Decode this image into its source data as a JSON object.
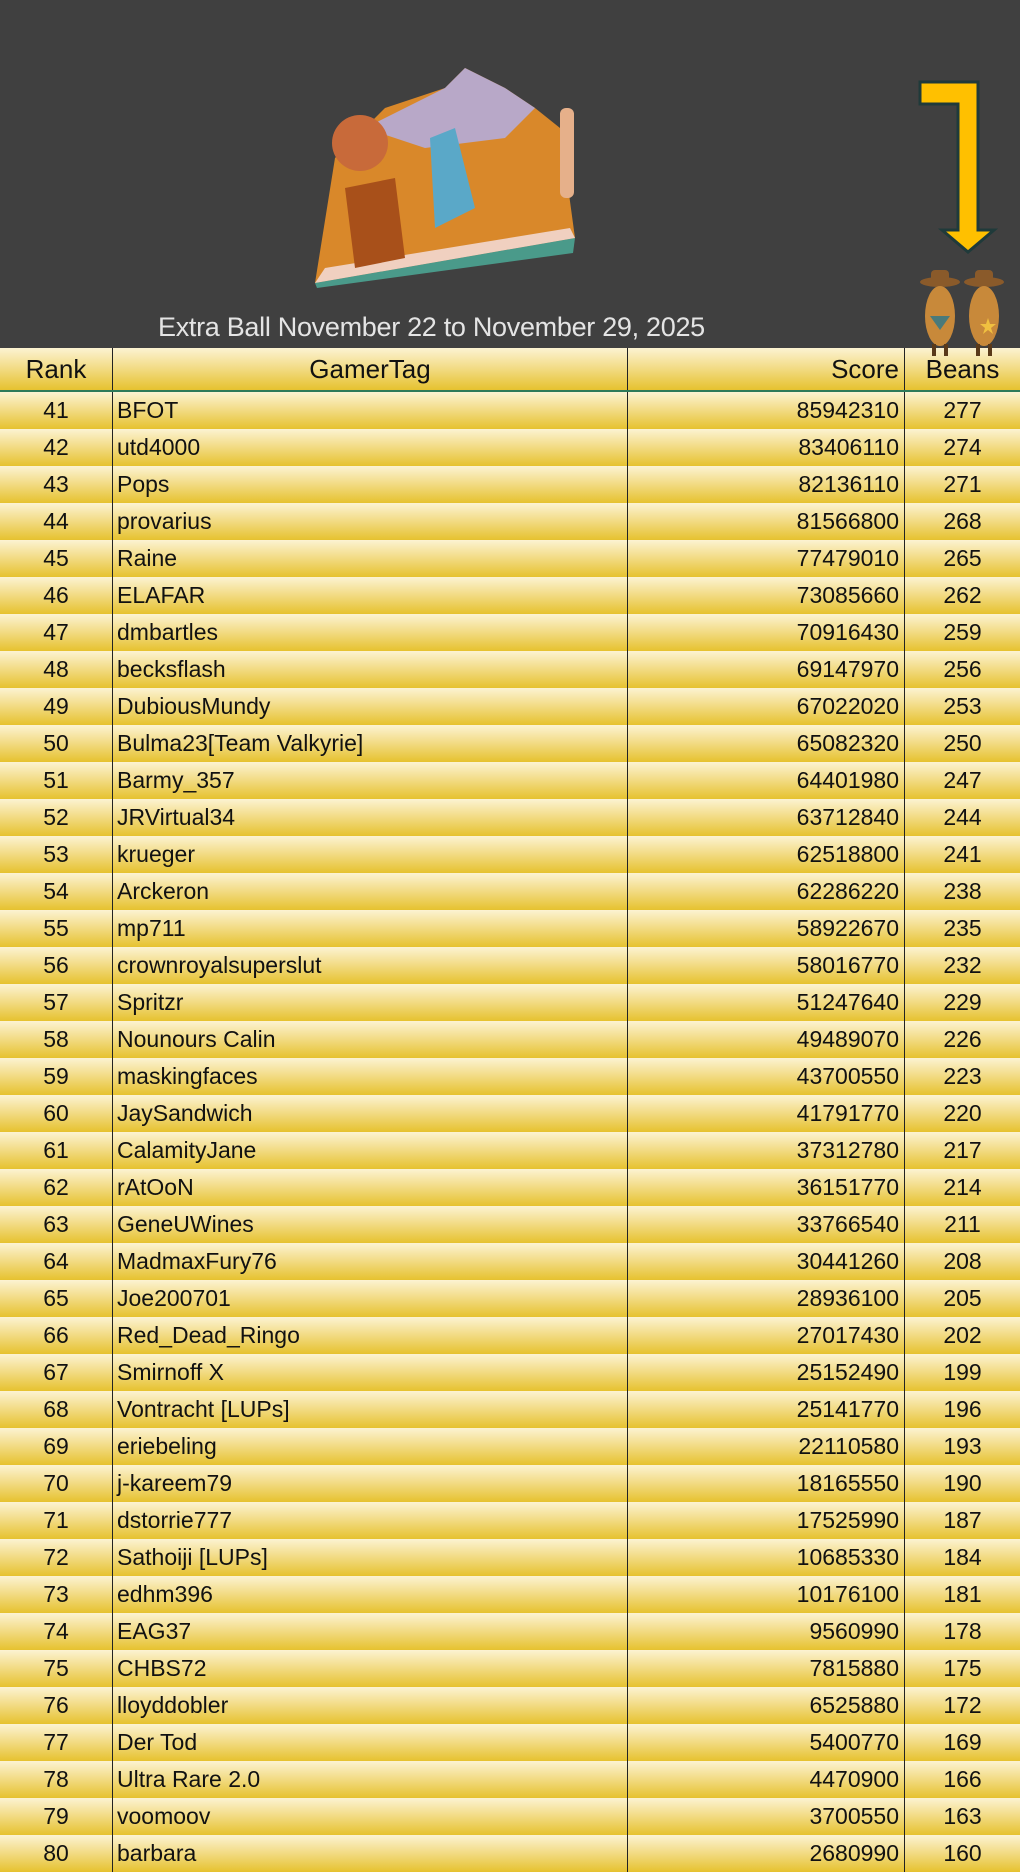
{
  "header": {
    "title": "Extra Ball November 22 to November 29, 2025",
    "logo_icon": "pinball-backglass-logo",
    "arrow_icon": "down-arrow-icon",
    "mascot_icon": "cowboy-peanuts-icon",
    "arrow_color": "#FFC000"
  },
  "table": {
    "columns": [
      "Rank",
      "GamerTag",
      "Score",
      "Beans"
    ],
    "rows": [
      [
        "41",
        "BFOT",
        "85942310",
        "277"
      ],
      [
        "42",
        "utd4000",
        "83406110",
        "274"
      ],
      [
        "43",
        "Pops",
        "82136110",
        "271"
      ],
      [
        "44",
        "provarius",
        "81566800",
        "268"
      ],
      [
        "45",
        "Raine",
        "77479010",
        "265"
      ],
      [
        "46",
        "ELAFAR",
        "73085660",
        "262"
      ],
      [
        "47",
        "dmbartles",
        "70916430",
        "259"
      ],
      [
        "48",
        "becksflash",
        "69147970",
        "256"
      ],
      [
        "49",
        "DubiousMundy",
        "67022020",
        "253"
      ],
      [
        "50",
        "Bulma23[Team Valkyrie]",
        "65082320",
        "250"
      ],
      [
        "51",
        "Barmy_357",
        "64401980",
        "247"
      ],
      [
        "52",
        "JRVirtual34",
        "63712840",
        "244"
      ],
      [
        "53",
        "krueger",
        "62518800",
        "241"
      ],
      [
        "54",
        "Arckeron",
        "62286220",
        "238"
      ],
      [
        "55",
        "mp711",
        "58922670",
        "235"
      ],
      [
        "56",
        "crownroyalsuperslut",
        "58016770",
        "232"
      ],
      [
        "57",
        "Spritzr",
        "51247640",
        "229"
      ],
      [
        "58",
        "Nounours Calin",
        "49489070",
        "226"
      ],
      [
        "59",
        "maskingfaces",
        "43700550",
        "223"
      ],
      [
        "60",
        "JaySandwich",
        "41791770",
        "220"
      ],
      [
        "61",
        "CalamityJane",
        "37312780",
        "217"
      ],
      [
        "62",
        "rAtOoN",
        "36151770",
        "214"
      ],
      [
        "63",
        "GeneUWines",
        "33766540",
        "211"
      ],
      [
        "64",
        "MadmaxFury76",
        "30441260",
        "208"
      ],
      [
        "65",
        "Joe200701",
        "28936100",
        "205"
      ],
      [
        "66",
        "Red_Dead_Ringo",
        "27017430",
        "202"
      ],
      [
        "67",
        "Smirnoff X",
        "25152490",
        "199"
      ],
      [
        "68",
        "Vontracht [LUPs]",
        "25141770",
        "196"
      ],
      [
        "69",
        "eriebeling",
        "22110580",
        "193"
      ],
      [
        "70",
        "j-kareem79",
        "18165550",
        "190"
      ],
      [
        "71",
        "dstorrie777",
        "17525990",
        "187"
      ],
      [
        "72",
        "Sathoiji [LUPs]",
        "10685330",
        "184"
      ],
      [
        "73",
        "edhm396",
        "10176100",
        "181"
      ],
      [
        "74",
        "EAG37",
        "9560990",
        "178"
      ],
      [
        "75",
        "CHBS72",
        "7815880",
        "175"
      ],
      [
        "76",
        "lloyddobler",
        "6525880",
        "172"
      ],
      [
        "77",
        "Der Tod",
        "5400770",
        "169"
      ],
      [
        "78",
        "Ultra Rare 2.0",
        "4470900",
        "166"
      ],
      [
        "79",
        "voomoov",
        "3700550",
        "163"
      ],
      [
        "80",
        "barbara",
        "2680990",
        "160"
      ]
    ]
  }
}
